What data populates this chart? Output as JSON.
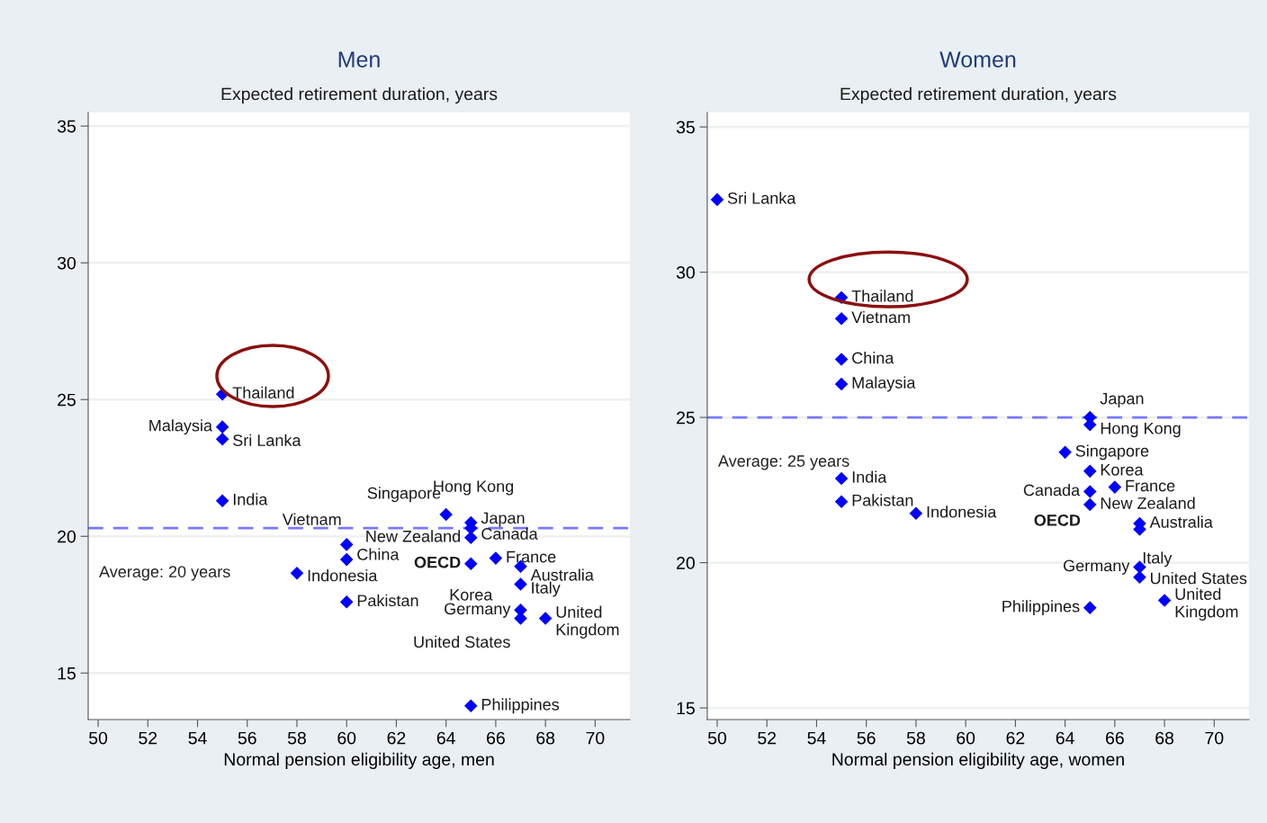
{
  "chart_data": [
    {
      "type": "scatter",
      "title": "Men",
      "subtitle": "Expected retirement duration, years",
      "xlabel": "Normal pension eligibility age, men",
      "xlim": [
        49.6,
        71.4
      ],
      "ylim": [
        13.3,
        35.5
      ],
      "xticks": [
        50,
        52,
        54,
        56,
        58,
        60,
        62,
        64,
        66,
        68,
        70
      ],
      "yticks": [
        15,
        20,
        25,
        30,
        35
      ],
      "grid": "y",
      "marker": "diamond",
      "series": [
        {
          "color": "#0000ff",
          "x": [
            55,
            55,
            55,
            55,
            60,
            60,
            58,
            60,
            64,
            65,
            65,
            null,
            65,
            65,
            null,
            66,
            67,
            67,
            67,
            67,
            68,
            65
          ],
          "values": [
            25.2,
            24.0,
            23.55,
            21.3,
            19.7,
            19.15,
            18.65,
            17.6,
            20.8,
            20.5,
            20.3,
            null,
            19.95,
            19.0,
            null,
            19.2,
            18.9,
            18.25,
            17.3,
            17.0,
            17.0,
            13.8
          ]
        }
      ],
      "ref_lines": [
        {
          "axis": "y",
          "value": 20.3,
          "label": "Average: 20 years",
          "color": "#7878ff",
          "line_style": "dashed"
        }
      ],
      "annotations": [
        {
          "text": "Thailand",
          "x": 55,
          "y": 25.2
        },
        {
          "text": "Malaysia",
          "x": 55,
          "y": 24.0
        },
        {
          "text": "Sri Lanka",
          "x": 55,
          "y": 23.55
        },
        {
          "text": "India",
          "x": 55,
          "y": 21.3
        },
        {
          "text": "Vietnam",
          "x": 60,
          "y": 19.7
        },
        {
          "text": "China",
          "x": 60,
          "y": 19.15
        },
        {
          "text": "Indonesia",
          "x": 58,
          "y": 18.65
        },
        {
          "text": "Pakistan",
          "x": 60,
          "y": 17.6
        },
        {
          "text": "Singapore",
          "x": 64,
          "y": 20.8
        },
        {
          "text": "Hong Kong",
          "x": 65,
          "y": 20.5
        },
        {
          "text": "Japan",
          "x": 65,
          "y": 20.3
        },
        {
          "text": "New Zealand",
          "x": 65,
          "y": 19.95
        },
        {
          "text": "Canada",
          "x": 65,
          "y": 19.95
        },
        {
          "text": "OECD",
          "x": 65,
          "y": 19.0
        },
        {
          "text": "Korea",
          "x": 65,
          "y": 19.0
        },
        {
          "text": "France",
          "x": 66,
          "y": 19.2
        },
        {
          "text": "Australia",
          "x": 67,
          "y": 18.9
        },
        {
          "text": "Italy",
          "x": 67,
          "y": 18.25
        },
        {
          "text": "Germany",
          "x": 67,
          "y": 17.3
        },
        {
          "text": "United States",
          "x": 67,
          "y": 17.0
        },
        {
          "text": "United\nKingdom",
          "x": 68,
          "y": 17.0
        },
        {
          "text": "Philippines",
          "x": 65,
          "y": 13.8
        }
      ]
    },
    {
      "type": "scatter",
      "title": "Women",
      "subtitle": "Expected retirement duration, years",
      "xlabel": "Normal pension eligibility age, women",
      "xlim": [
        49.6,
        71.4
      ],
      "ylim": [
        14.6,
        35.5
      ],
      "xticks": [
        50,
        52,
        54,
        56,
        58,
        60,
        62,
        64,
        66,
        68,
        70
      ],
      "yticks": [
        15,
        20,
        25,
        30,
        35
      ],
      "grid": "y",
      "marker": "diamond",
      "series": [
        {
          "color": "#0000ff",
          "x": [
            50,
            55,
            55,
            55,
            55,
            55,
            55,
            58,
            65,
            65,
            64,
            65,
            66,
            65,
            65,
            67,
            67,
            67,
            67,
            68,
            65
          ],
          "values": [
            32.5,
            29.13,
            28.4,
            27.0,
            26.15,
            22.9,
            22.1,
            21.7,
            25.0,
            24.75,
            23.8,
            23.15,
            22.6,
            22.45,
            22.0,
            21.35,
            21.15,
            19.85,
            19.5,
            18.7,
            18.45
          ]
        }
      ],
      "ref_lines": [
        {
          "axis": "y",
          "value": 25.0,
          "label": "Average: 25 years",
          "color": "#7878ff",
          "line_style": "dashed"
        }
      ],
      "annotations": [
        {
          "text": "Sri Lanka",
          "x": 50,
          "y": 32.5
        },
        {
          "text": "Thailand",
          "x": 55,
          "y": 29.13
        },
        {
          "text": "Vietnam",
          "x": 55,
          "y": 28.4
        },
        {
          "text": "China",
          "x": 55,
          "y": 27.0
        },
        {
          "text": "Malaysia",
          "x": 55,
          "y": 26.15
        },
        {
          "text": "India",
          "x": 55,
          "y": 22.9
        },
        {
          "text": "Pakistan",
          "x": 55,
          "y": 22.1
        },
        {
          "text": "Indonesia",
          "x": 58,
          "y": 21.7
        },
        {
          "text": "Japan",
          "x": 65,
          "y": 25.0
        },
        {
          "text": "Hong Kong",
          "x": 65,
          "y": 24.75
        },
        {
          "text": "Singapore",
          "x": 64,
          "y": 23.8
        },
        {
          "text": "Korea",
          "x": 65,
          "y": 23.15
        },
        {
          "text": "France",
          "x": 66,
          "y": 22.6
        },
        {
          "text": "Canada",
          "x": 65,
          "y": 22.45
        },
        {
          "text": "New Zealand",
          "x": 65,
          "y": 22.0
        },
        {
          "text": "Australia",
          "x": 67,
          "y": 21.35
        },
        {
          "text": "Italy",
          "x": 67,
          "y": 21.15
        },
        {
          "text": "Germany",
          "x": 67,
          "y": 19.85
        },
        {
          "text": "United States",
          "x": 67,
          "y": 19.5
        },
        {
          "text": "United\nKingdom",
          "x": 68,
          "y": 18.7
        },
        {
          "text": "Philippines",
          "x": 65,
          "y": 18.45
        },
        "OECD"
      ]
    }
  ]
}
